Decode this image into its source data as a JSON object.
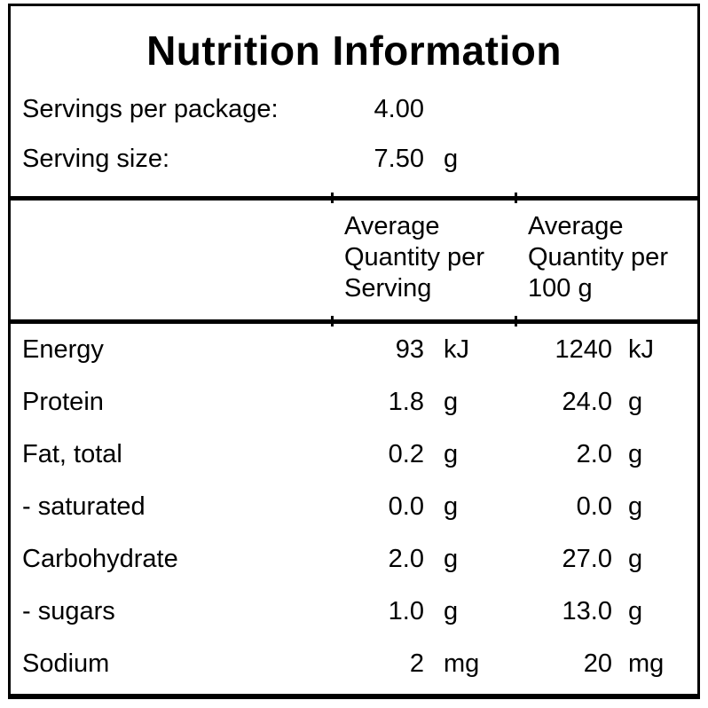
{
  "title": "Nutrition Information",
  "serving_info": [
    {
      "label": "Servings per package:",
      "value": "4.00",
      "unit": ""
    },
    {
      "label": "Serving size:",
      "value": "7.50",
      "unit": "g"
    }
  ],
  "column_headers": {
    "per_serving": "Average\nQuantity per\nServing",
    "per_100g": "Average\nQuantity per\n100 g"
  },
  "nutrients": [
    {
      "name": "Energy",
      "per_serving": "93",
      "per_serving_unit": "kJ",
      "per_100g": "1240",
      "per_100g_unit": "kJ"
    },
    {
      "name": "Protein",
      "per_serving": "1.8",
      "per_serving_unit": "g",
      "per_100g": "24.0",
      "per_100g_unit": "g"
    },
    {
      "name": "Fat, total",
      "per_serving": "0.2",
      "per_serving_unit": "g",
      "per_100g": "2.0",
      "per_100g_unit": "g"
    },
    {
      "name": "- saturated",
      "per_serving": "0.0",
      "per_serving_unit": "g",
      "per_100g": "0.0",
      "per_100g_unit": "g"
    },
    {
      "name": "Carbohydrate",
      "per_serving": "2.0",
      "per_serving_unit": "g",
      "per_100g": "27.0",
      "per_100g_unit": "g"
    },
    {
      "name": "- sugars",
      "per_serving": "1.0",
      "per_serving_unit": "g",
      "per_100g": "13.0",
      "per_100g_unit": "g"
    },
    {
      "name": "Sodium",
      "per_serving": "2",
      "per_serving_unit": "mg",
      "per_100g": "20",
      "per_100g_unit": "mg"
    }
  ],
  "colors": {
    "background": "#ffffff",
    "border": "#000000",
    "text": "#000000"
  }
}
